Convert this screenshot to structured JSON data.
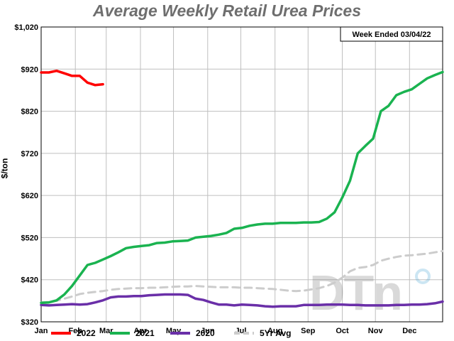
{
  "chart_data": {
    "type": "line",
    "title": "Average Weekly Retail Urea Prices",
    "annotation": "Week Ended 03/04/22",
    "xlabel": "",
    "ylabel": "$/ton",
    "ylim": [
      320,
      1020
    ],
    "xlim": [
      0,
      52
    ],
    "y_ticks": [
      320,
      420,
      520,
      620,
      720,
      820,
      920,
      1020
    ],
    "y_tick_labels": [
      "$320",
      "$420",
      "$520",
      "$620",
      "$720",
      "$820",
      "$920",
      "$1,020"
    ],
    "x_tick_positions": [
      0,
      4.43,
      8.43,
      12.86,
      17.14,
      21.57,
      25.86,
      30.29,
      34.57,
      39.0,
      43.29,
      47.71
    ],
    "x_tick_labels": [
      "Jan",
      "Feb",
      "Mar",
      "Apr",
      "May",
      "Jun",
      "Jul",
      "Aug",
      "Sep",
      "Oct",
      "Nov",
      "Dec"
    ],
    "grid": true,
    "legend_position": "bottom",
    "series": [
      {
        "name": "2022",
        "color": "#ff0000",
        "dashed": false,
        "x": [
          0,
          1,
          2,
          3,
          4,
          5,
          6,
          7,
          8
        ],
        "y": [
          912,
          912,
          916,
          910,
          904,
          904,
          888,
          882,
          884
        ]
      },
      {
        "name": "2021",
        "color": "#1ab350",
        "dashed": false,
        "x": [
          0,
          1,
          2,
          3,
          4,
          5,
          6,
          7,
          8,
          9,
          10,
          11,
          12,
          13,
          14,
          15,
          16,
          17,
          18,
          19,
          20,
          21,
          22,
          23,
          24,
          25,
          26,
          27,
          28,
          29,
          30,
          31,
          32,
          33,
          34,
          35,
          36,
          37,
          38,
          39,
          40,
          41,
          42,
          43,
          44,
          45,
          46,
          47,
          48,
          49,
          50,
          51,
          52
        ],
        "y": [
          365,
          366,
          371,
          385,
          405,
          430,
          455,
          460,
          468,
          476,
          485,
          495,
          498,
          500,
          502,
          507,
          508,
          511,
          512,
          513,
          520,
          522,
          524,
          527,
          531,
          541,
          543,
          548,
          551,
          553,
          553,
          555,
          555,
          555,
          556,
          556,
          557,
          565,
          580,
          615,
          655,
          720,
          738,
          755,
          820,
          833,
          858,
          866,
          872,
          885,
          898,
          906,
          913
        ]
      },
      {
        "name": "2020",
        "color": "#6a2fa8",
        "dashed": false,
        "x": [
          0,
          1,
          2,
          3,
          4,
          5,
          6,
          7,
          8,
          9,
          10,
          11,
          12,
          13,
          14,
          15,
          16,
          17,
          18,
          19,
          20,
          21,
          22,
          23,
          24,
          25,
          26,
          27,
          28,
          29,
          30,
          31,
          32,
          33,
          34,
          35,
          36,
          37,
          38,
          39,
          40,
          41,
          42,
          43,
          44,
          45,
          46,
          47,
          48,
          49,
          50,
          51,
          52
        ],
        "y": [
          360,
          359,
          360,
          361,
          362,
          361,
          362,
          366,
          371,
          378,
          380,
          380,
          381,
          381,
          383,
          384,
          385,
          385,
          385,
          384,
          375,
          372,
          366,
          361,
          361,
          359,
          361,
          360,
          359,
          357,
          356,
          357,
          357,
          357,
          360,
          360,
          360,
          361,
          361,
          361,
          360,
          360,
          359,
          359,
          359,
          359,
          360,
          360,
          361,
          361,
          362,
          364,
          368
        ]
      },
      {
        "name": "5Yr Avg",
        "color": "#cccccc",
        "dashed": true,
        "x": [
          0,
          1,
          2,
          3,
          4,
          5,
          6,
          7,
          8,
          9,
          10,
          11,
          12,
          13,
          14,
          15,
          16,
          17,
          18,
          19,
          20,
          21,
          22,
          23,
          24,
          25,
          26,
          27,
          28,
          29,
          30,
          31,
          32,
          33,
          34,
          35,
          36,
          37,
          38,
          39,
          40,
          41,
          42,
          43,
          44,
          45,
          46,
          47,
          48,
          49,
          50,
          51,
          52
        ],
        "y": [
          366,
          367,
          370,
          375,
          380,
          386,
          389,
          391,
          393,
          396,
          398,
          399,
          400,
          400,
          401,
          401,
          402,
          403,
          404,
          404,
          405,
          404,
          403,
          402,
          402,
          402,
          401,
          401,
          400,
          399,
          398,
          396,
          394,
          393,
          394,
          397,
          400,
          405,
          413,
          425,
          440,
          448,
          450,
          455,
          465,
          470,
          474,
          477,
          478,
          480,
          482,
          485,
          488
        ]
      }
    ]
  }
}
